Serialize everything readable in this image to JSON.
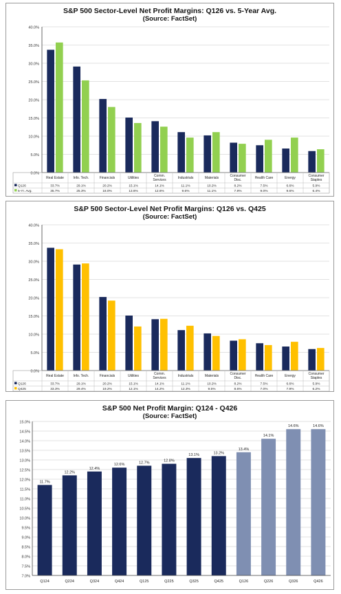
{
  "chart_data": [
    {
      "type": "bar",
      "title": "S&P 500 Sector-Level Net Profit Margins: Q126 vs. 5-Year Avg.",
      "subtitle": "(Source: FactSet)",
      "categories": [
        "Real Estate",
        "Info. Tech.",
        "Financials",
        "Utilities",
        "Comm. Services",
        "Industrials",
        "Materials",
        "Consumer Disc.",
        "Health Care",
        "Energy",
        "Consumer Staples"
      ],
      "series": [
        {
          "name": "Q126",
          "color": "#1a2a5c",
          "values": [
            33.7,
            29.1,
            20.2,
            15.1,
            14.1,
            11.1,
            10.2,
            8.2,
            7.5,
            6.6,
            5.9
          ],
          "labels": [
            "33.7%",
            "29.1%",
            "20.2%",
            "15.1%",
            "14.1%",
            "11.1%",
            "10.2%",
            "8.2%",
            "7.5%",
            "6.6%",
            "5.9%"
          ]
        },
        {
          "name": "5-Yr. Avg.",
          "color": "#92d050",
          "values": [
            35.7,
            25.3,
            18.0,
            13.6,
            12.6,
            9.6,
            11.1,
            7.9,
            9.0,
            9.6,
            6.4
          ],
          "labels": [
            "35.7%",
            "25.3%",
            "18.0%",
            "13.6%",
            "12.6%",
            "9.6%",
            "11.1%",
            "7.9%",
            "9.0%",
            "9.6%",
            "6.4%"
          ]
        }
      ],
      "ylim": [
        0,
        40
      ],
      "yticks": [
        "0.0%",
        "5.0%",
        "10.0%",
        "15.0%",
        "20.0%",
        "25.0%",
        "30.0%",
        "35.0%",
        "40.0%"
      ],
      "grid": true,
      "legend": "data-table"
    },
    {
      "type": "bar",
      "title": "S&P 500 Sector-Level Net Profit Margins: Q126 vs. Q425",
      "subtitle": "(Source: FactSet)",
      "categories": [
        "Real Estate",
        "Info. Tech.",
        "Financials",
        "Utilities",
        "Comm. Services",
        "Industrials",
        "Materials",
        "Consumer Disc.",
        "Health Care",
        "Energy",
        "Consumer Staples"
      ],
      "series": [
        {
          "name": "Q126",
          "color": "#1a2a5c",
          "values": [
            33.7,
            29.1,
            20.2,
            15.1,
            14.1,
            11.1,
            10.2,
            8.2,
            7.5,
            6.6,
            5.9
          ],
          "labels": [
            "33.7%",
            "29.1%",
            "20.2%",
            "15.1%",
            "14.1%",
            "11.1%",
            "10.2%",
            "8.2%",
            "7.5%",
            "6.6%",
            "5.9%"
          ]
        },
        {
          "name": "Q425",
          "color": "#ffc000",
          "values": [
            33.3,
            29.4,
            19.2,
            12.1,
            14.2,
            12.3,
            9.5,
            8.6,
            7.0,
            7.9,
            6.2
          ],
          "labels": [
            "33.3%",
            "29.4%",
            "19.2%",
            "12.1%",
            "14.2%",
            "12.3%",
            "9.5%",
            "8.6%",
            "7.0%",
            "7.9%",
            "6.2%"
          ]
        }
      ],
      "ylim": [
        0,
        40
      ],
      "yticks": [
        "0.0%",
        "5.0%",
        "10.0%",
        "15.0%",
        "20.0%",
        "25.0%",
        "30.0%",
        "35.0%",
        "40.0%"
      ],
      "grid": true,
      "legend": "data-table"
    },
    {
      "type": "bar",
      "title": "S&P 500 Net Profit Margin: Q124 - Q426",
      "subtitle": "(Source: FactSet)",
      "categories": [
        "Q124",
        "Q224",
        "Q324",
        "Q424",
        "Q125",
        "Q225",
        "Q325",
        "Q425",
        "Q126",
        "Q226",
        "Q326",
        "Q426"
      ],
      "values": [
        11.7,
        12.2,
        12.4,
        12.6,
        12.7,
        12.8,
        13.1,
        13.2,
        13.4,
        14.1,
        14.6,
        14.6
      ],
      "value_labels": [
        "11.7%",
        "12.2%",
        "12.4%",
        "12.6%",
        "12.7%",
        "12.8%",
        "13.1%",
        "13.2%",
        "13.4%",
        "14.1%",
        "14.6%",
        "14.6%"
      ],
      "colors": [
        "#1a2a5c",
        "#1a2a5c",
        "#1a2a5c",
        "#1a2a5c",
        "#1a2a5c",
        "#1a2a5c",
        "#1a2a5c",
        "#1a2a5c",
        "#7f8fb2",
        "#7f8fb2",
        "#7f8fb2",
        "#7f8fb2"
      ],
      "ylim": [
        7.0,
        15.0
      ],
      "yticks": [
        "7.0%",
        "7.5%",
        "8.0%",
        "8.5%",
        "9.0%",
        "9.5%",
        "10.0%",
        "10.5%",
        "11.0%",
        "11.5%",
        "12.0%",
        "12.5%",
        "13.0%",
        "13.5%",
        "14.0%",
        "14.5%",
        "15.0%"
      ],
      "grid": true
    }
  ]
}
